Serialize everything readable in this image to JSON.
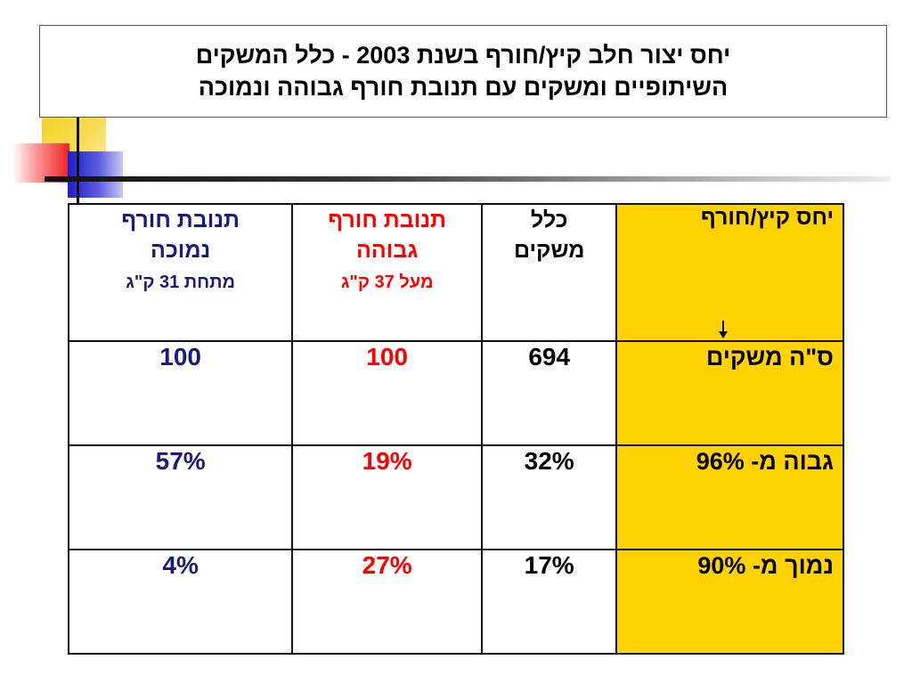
{
  "title": {
    "line1": "יחס יצור חלב קיץ/חורף בשנת 2003 - כלל המשקים",
    "line2": "השיתופיים ומשקים עם תנובת חורף גבוהה ונמוכה"
  },
  "table": {
    "headers": {
      "label_col": "יחס קיץ/חורף",
      "all_farms": {
        "line1": "כלל",
        "line2": "משקים"
      },
      "high_winter": {
        "line1": "תנובת חורף",
        "line2": "גבוהה",
        "sub": "מעל 37 ק\"ג"
      },
      "low_winter": {
        "line1": "תנובת חורף",
        "line2": "נמוכה",
        "sub": "מתחת 31 ק\"ג"
      }
    },
    "rows": [
      {
        "label": "ס\"ה משקים",
        "all": "694",
        "high": "100",
        "low": "100"
      },
      {
        "label": "גבוה מ- 96%",
        "all": "32%",
        "high": "19%",
        "low": "57%"
      },
      {
        "label": "נמוך מ- 90%",
        "all": "17%",
        "high": "27%",
        "low": "4%"
      }
    ]
  },
  "colors": {
    "label_column_bg": "#ffd200",
    "high_winter_text": "#ff0000",
    "low_winter_text": "#1a1a7a"
  },
  "icons": [
    "down-arrow-icon"
  ]
}
